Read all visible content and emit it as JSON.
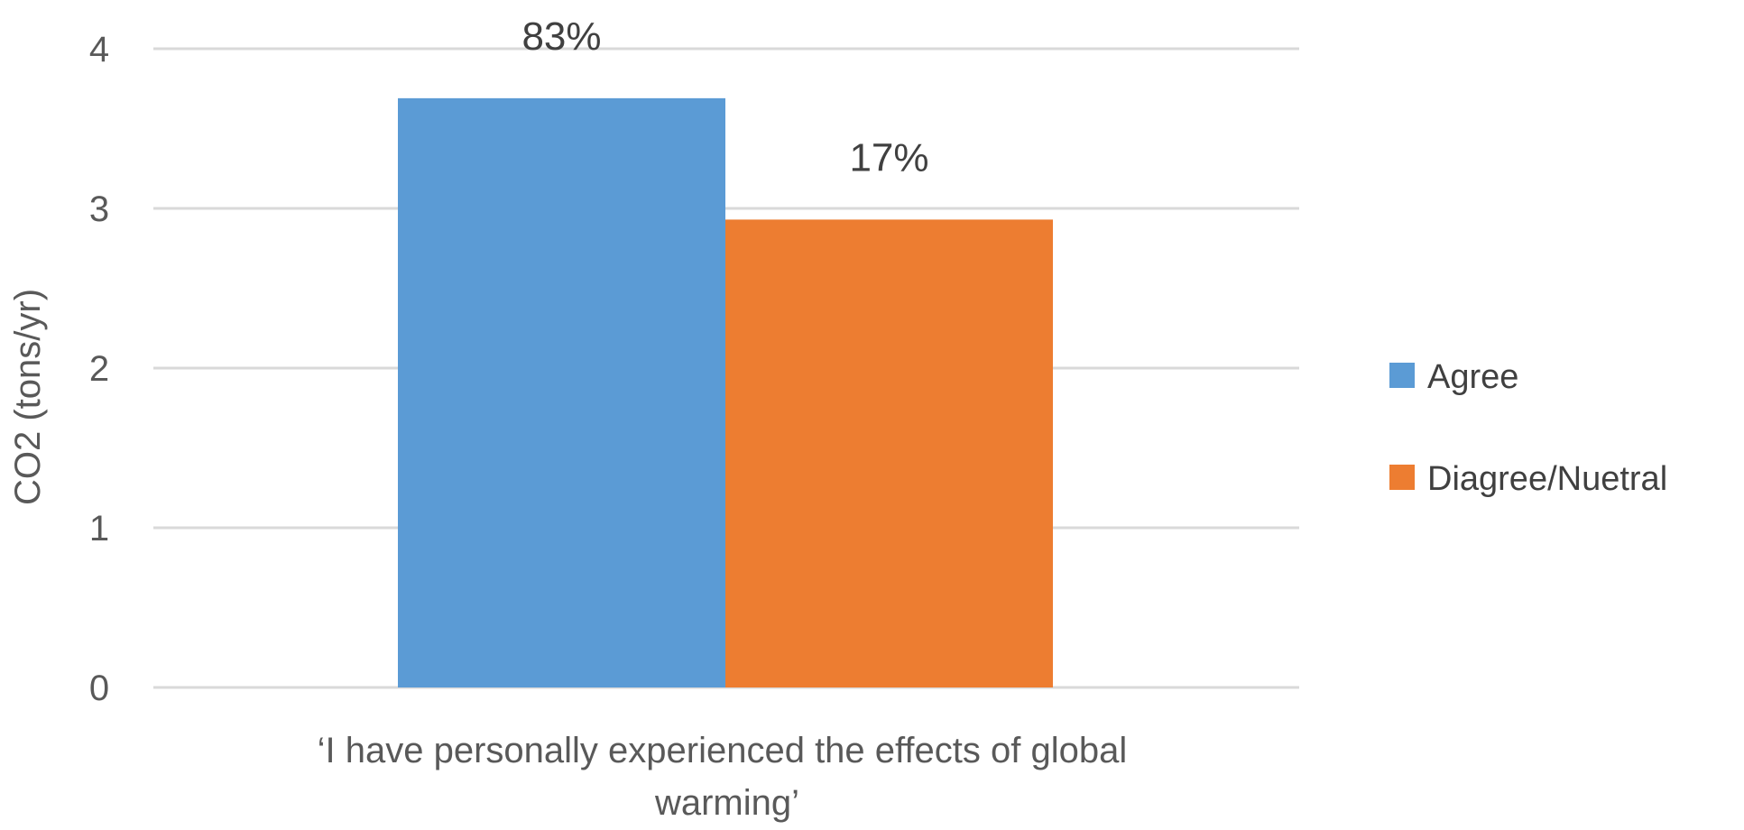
{
  "colors": {
    "agree": "#5b9bd5",
    "disagree_neutral": "#ed7d31"
  },
  "chart_data": {
    "type": "bar",
    "categories": [
      "‘I have personally experienced the effects of global warming’"
    ],
    "category_label_lines": [
      "‘I have personally experienced the effects of global",
      "warming’"
    ],
    "series": [
      {
        "name": "Agree",
        "values": [
          3.69
        ],
        "data_label": "83%",
        "color": "#5b9bd5"
      },
      {
        "name": "Diagree/Nuetral",
        "values": [
          2.93
        ],
        "data_label": "17%",
        "color": "#ed7d31"
      }
    ],
    "title": "",
    "xlabel": "",
    "ylabel": "CO2 (tons/yr)",
    "ylim": [
      0,
      4
    ],
    "yticks": [
      0,
      1,
      2,
      3,
      4
    ],
    "grid": true,
    "legend": "right"
  }
}
